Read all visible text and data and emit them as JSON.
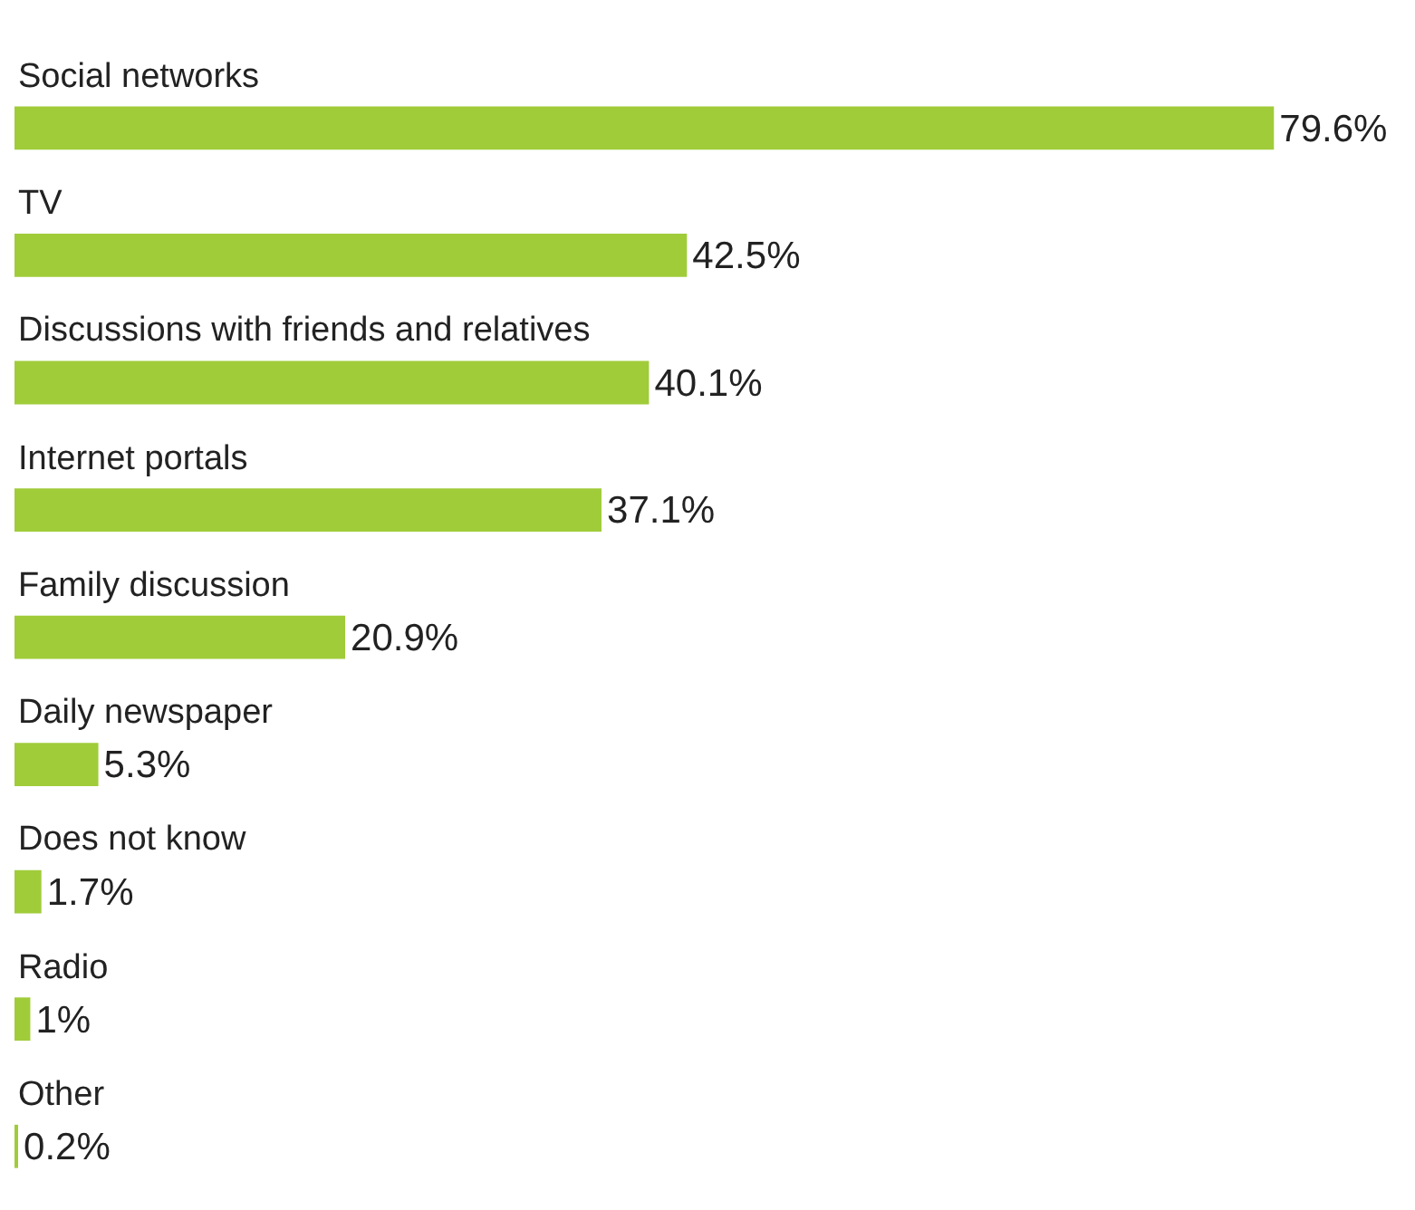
{
  "chart_data": {
    "type": "bar",
    "orientation": "horizontal",
    "categories": [
      "Social networks",
      "TV",
      "Discussions with friends and relatives",
      "Internet portals",
      "Family discussion",
      "Daily newspaper",
      "Does not know",
      "Radio",
      "Other"
    ],
    "values": [
      79.6,
      42.5,
      40.1,
      37.1,
      20.9,
      5.3,
      1.7,
      1,
      0.2
    ],
    "value_labels": [
      "79.6%",
      "42.5%",
      "40.1%",
      "37.1%",
      "20.9%",
      "5.3%",
      "1.7%",
      "1%",
      "0.2%"
    ],
    "color": "#a0cc3a"
  }
}
